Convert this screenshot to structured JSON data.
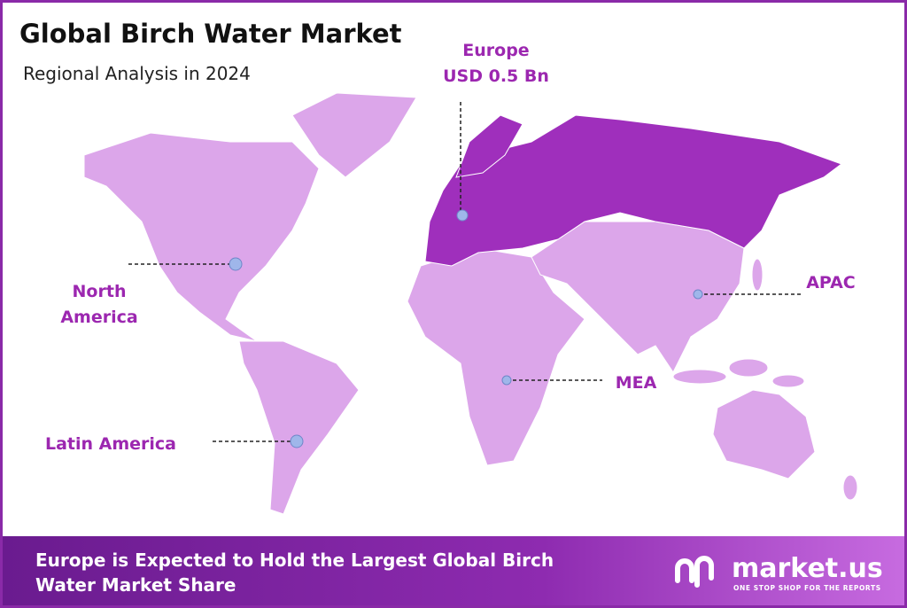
{
  "header": {
    "title": "Global Birch Water Market",
    "subtitle": "Regional Analysis in 2024"
  },
  "regions": [
    {
      "lines": [
        "Europe",
        "USD 0.5 Bn"
      ]
    },
    {
      "lines": [
        "North",
        "America"
      ]
    },
    {
      "lines": [
        "APAC"
      ]
    },
    {
      "lines": [
        "MEA"
      ]
    },
    {
      "lines": [
        "Latin America"
      ]
    }
  ],
  "footer": {
    "lines": [
      "Europe is Expected to Hold the Largest Global Birch",
      "Water Market Share"
    ]
  },
  "logo": {
    "name": "market.us",
    "tagline": "ONE STOP SHOP FOR THE REPORTS"
  }
}
